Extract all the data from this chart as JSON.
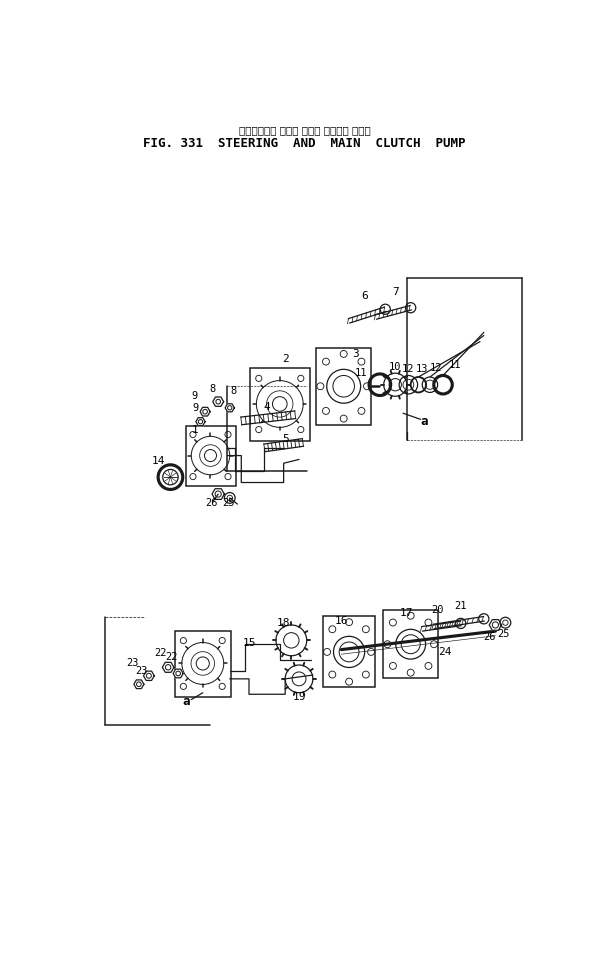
{
  "title_jp": "ステアリング および メイン クラッチ ポンプ",
  "title_en": "FIG. 331  STEERING  AND  MAIN  CLUTCH  PUMP",
  "bg_color": "#ffffff",
  "line_color": "#1a1a1a",
  "figsize": [
    5.94,
    9.73
  ],
  "dpi": 100
}
